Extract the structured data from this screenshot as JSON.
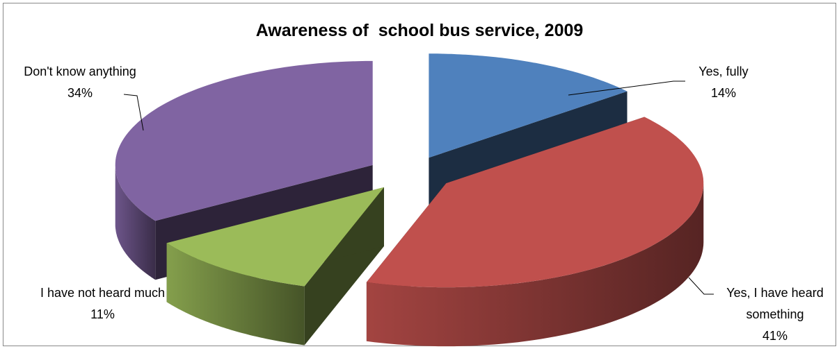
{
  "chart_data": {
    "type": "pie3d",
    "title": "Awareness of  school bus service, 2009",
    "categories": [
      "Yes, fully",
      "Yes, I have heard something",
      "I have not heard much",
      "Don't know anything"
    ],
    "values": [
      14,
      41,
      11,
      34
    ],
    "value_labels": [
      "14%",
      "41%",
      "11%",
      "34%"
    ],
    "colors": [
      "#4f81bd",
      "#c0504d",
      "#9bbb59",
      "#8064a2"
    ]
  }
}
